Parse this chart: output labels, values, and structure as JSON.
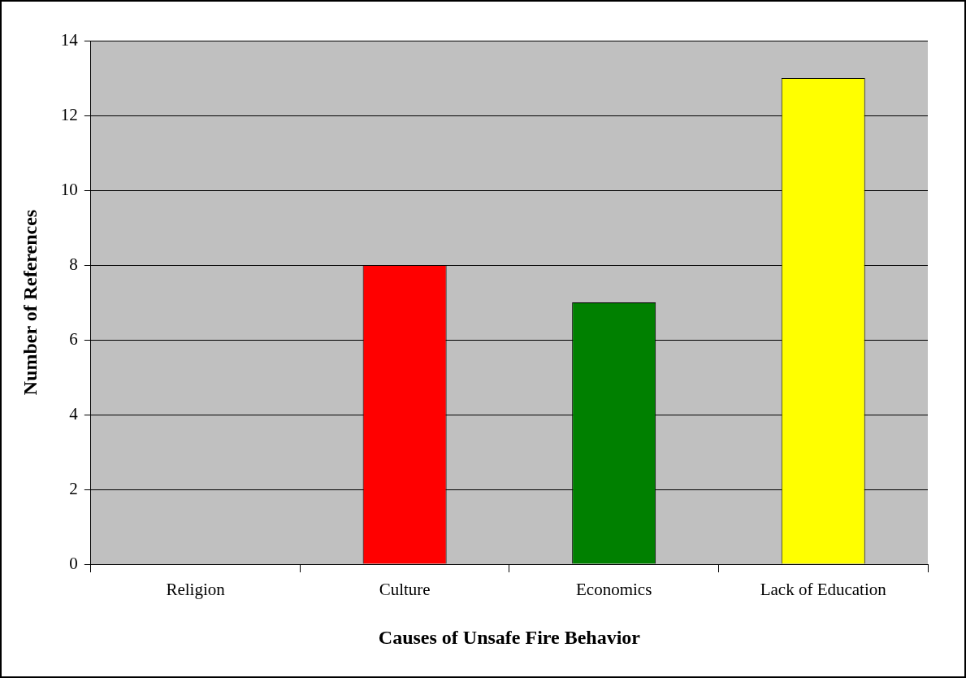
{
  "chart_data": {
    "type": "bar",
    "xlabel": "Causes of Unsafe Fire Behavior",
    "ylabel": "Number of References",
    "categories": [
      "Religion",
      "Culture",
      "Economics",
      "Lack of Education"
    ],
    "values": [
      0,
      8,
      7,
      13
    ],
    "colors": [
      null,
      "#ff0000",
      "#008000",
      "#ffff00"
    ],
    "ylim": [
      0,
      14
    ],
    "yticks": [
      0,
      2,
      4,
      6,
      8,
      10,
      12,
      14
    ],
    "grid": "y",
    "legend": false
  }
}
